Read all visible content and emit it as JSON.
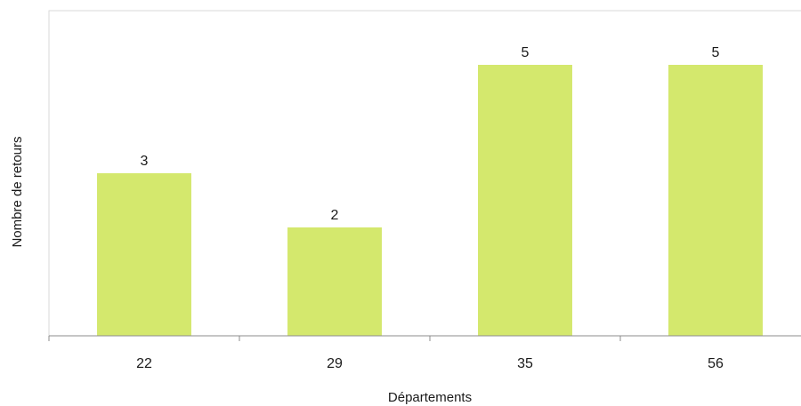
{
  "chart_data": {
    "type": "bar",
    "categories": [
      "22",
      "29",
      "35",
      "56"
    ],
    "values": [
      3,
      2,
      5,
      5
    ],
    "xlabel": "Départements",
    "ylabel": "Nombre de retours",
    "ylim": [
      0,
      6
    ],
    "grid": false,
    "legend": "none",
    "bar_color": "#d4e86d",
    "frame_color": "#d9d9d9",
    "axis_color": "#8c8c8c"
  }
}
